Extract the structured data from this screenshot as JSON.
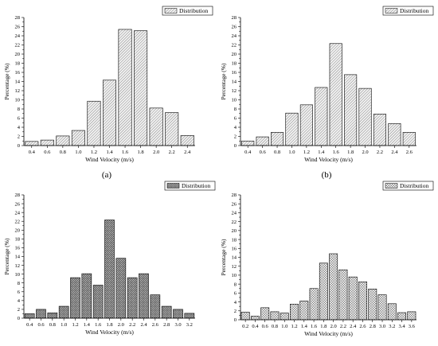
{
  "chart_data": [
    {
      "type": "bar",
      "caption": "(a)",
      "legend": "Distribution",
      "xlabel": "Wind Velocity (m/s)",
      "ylabel": "Percentage (%)",
      "ylim": [
        0,
        28
      ],
      "yticks": [
        0,
        2,
        4,
        6,
        8,
        10,
        12,
        14,
        16,
        18,
        20,
        22,
        24,
        26,
        28
      ],
      "xlim": [
        0.3,
        2.5
      ],
      "xticks": [
        "0.4",
        "0.6",
        "0.8",
        "1.0",
        "1.2",
        "1.4",
        "1.6",
        "1.8",
        "2.0",
        "2.2",
        "2.4"
      ],
      "x": [
        0.4,
        0.6,
        0.8,
        1.0,
        1.2,
        1.4,
        1.6,
        1.8,
        2.0,
        2.2,
        2.4
      ],
      "values": [
        0.9,
        1.2,
        2.1,
        3.3,
        9.7,
        14.3,
        25.4,
        25.1,
        8.2,
        7.2,
        2.2
      ],
      "pattern": "diag-light"
    },
    {
      "type": "bar",
      "caption": "(b)",
      "legend": "Distribution",
      "xlabel": "Wind Velocity (m/s)",
      "ylabel": "Percentage (%)",
      "ylim": [
        0,
        28
      ],
      "yticks": [
        0,
        2,
        4,
        6,
        8,
        10,
        12,
        14,
        16,
        18,
        20,
        22,
        24,
        26,
        28
      ],
      "xlim": [
        0.3,
        2.7
      ],
      "xticks": [
        "0.4",
        "0.6",
        "0.8",
        "1.0",
        "1.2",
        "1.4",
        "1.6",
        "1.8",
        "2.0",
        "2.2",
        "2.4",
        "2.6"
      ],
      "x": [
        0.4,
        0.6,
        0.8,
        1.0,
        1.2,
        1.4,
        1.6,
        1.8,
        2.0,
        2.2,
        2.4,
        2.6
      ],
      "values": [
        1.0,
        1.9,
        2.9,
        7.1,
        8.9,
        12.7,
        22.3,
        15.5,
        12.5,
        6.9,
        4.8,
        2.9
      ],
      "pattern": "diag-light"
    },
    {
      "type": "bar",
      "caption": "",
      "legend": "Distribution",
      "xlabel": "Wind Velocity (m/s)",
      "ylabel": "Percentage (%)",
      "ylim": [
        0,
        28
      ],
      "yticks": [
        0,
        2,
        4,
        6,
        8,
        10,
        12,
        14,
        16,
        18,
        20,
        22,
        24,
        26,
        28
      ],
      "xlim": [
        0.3,
        3.3
      ],
      "xticks": [
        "0.4",
        "0.6",
        "0.8",
        "1.0",
        "1.2",
        "1.4",
        "1.6",
        "1.8",
        "2.0",
        "2.2",
        "2.4",
        "2.6",
        "2.8",
        "3.0",
        "3.2"
      ],
      "x": [
        0.4,
        0.6,
        0.8,
        1.0,
        1.2,
        1.4,
        1.6,
        1.8,
        2.0,
        2.2,
        2.4,
        2.6,
        2.8,
        3.0,
        3.2
      ],
      "values": [
        1.0,
        2.0,
        1.2,
        2.7,
        9.2,
        10.1,
        7.5,
        22.3,
        13.6,
        9.2,
        10.1,
        5.3,
        2.7,
        2.0,
        1.1
      ],
      "pattern": "crosshatch-dark"
    },
    {
      "type": "bar",
      "caption": "",
      "legend": "Distribution",
      "xlabel": "Wind Velocity (m/s)",
      "ylabel": "Percentage (%)",
      "ylim": [
        0,
        28
      ],
      "yticks": [
        0,
        2,
        4,
        6,
        8,
        10,
        12,
        14,
        16,
        18,
        20,
        22,
        24,
        26,
        28
      ],
      "xlim": [
        0.1,
        3.7
      ],
      "xticks": [
        "0.2",
        "0.4",
        "0.6",
        "0.8",
        "1.0",
        "1.2",
        "1.4",
        "1.6",
        "1.8",
        "2.0",
        "2.2",
        "2.4",
        "2.6",
        "2.8",
        "3.0",
        "3.2",
        "3.4",
        "3.6"
      ],
      "x": [
        0.2,
        0.4,
        0.6,
        0.8,
        1.0,
        1.2,
        1.4,
        1.6,
        1.8,
        2.0,
        2.2,
        2.4,
        2.6,
        2.8,
        3.0,
        3.2,
        3.4,
        3.6
      ],
      "values": [
        1.7,
        0.8,
        2.7,
        1.8,
        1.5,
        3.5,
        4.2,
        7.0,
        12.7,
        14.8,
        11.2,
        9.6,
        8.5,
        6.9,
        5.6,
        3.6,
        1.6,
        1.8
      ],
      "pattern": "checker"
    }
  ]
}
